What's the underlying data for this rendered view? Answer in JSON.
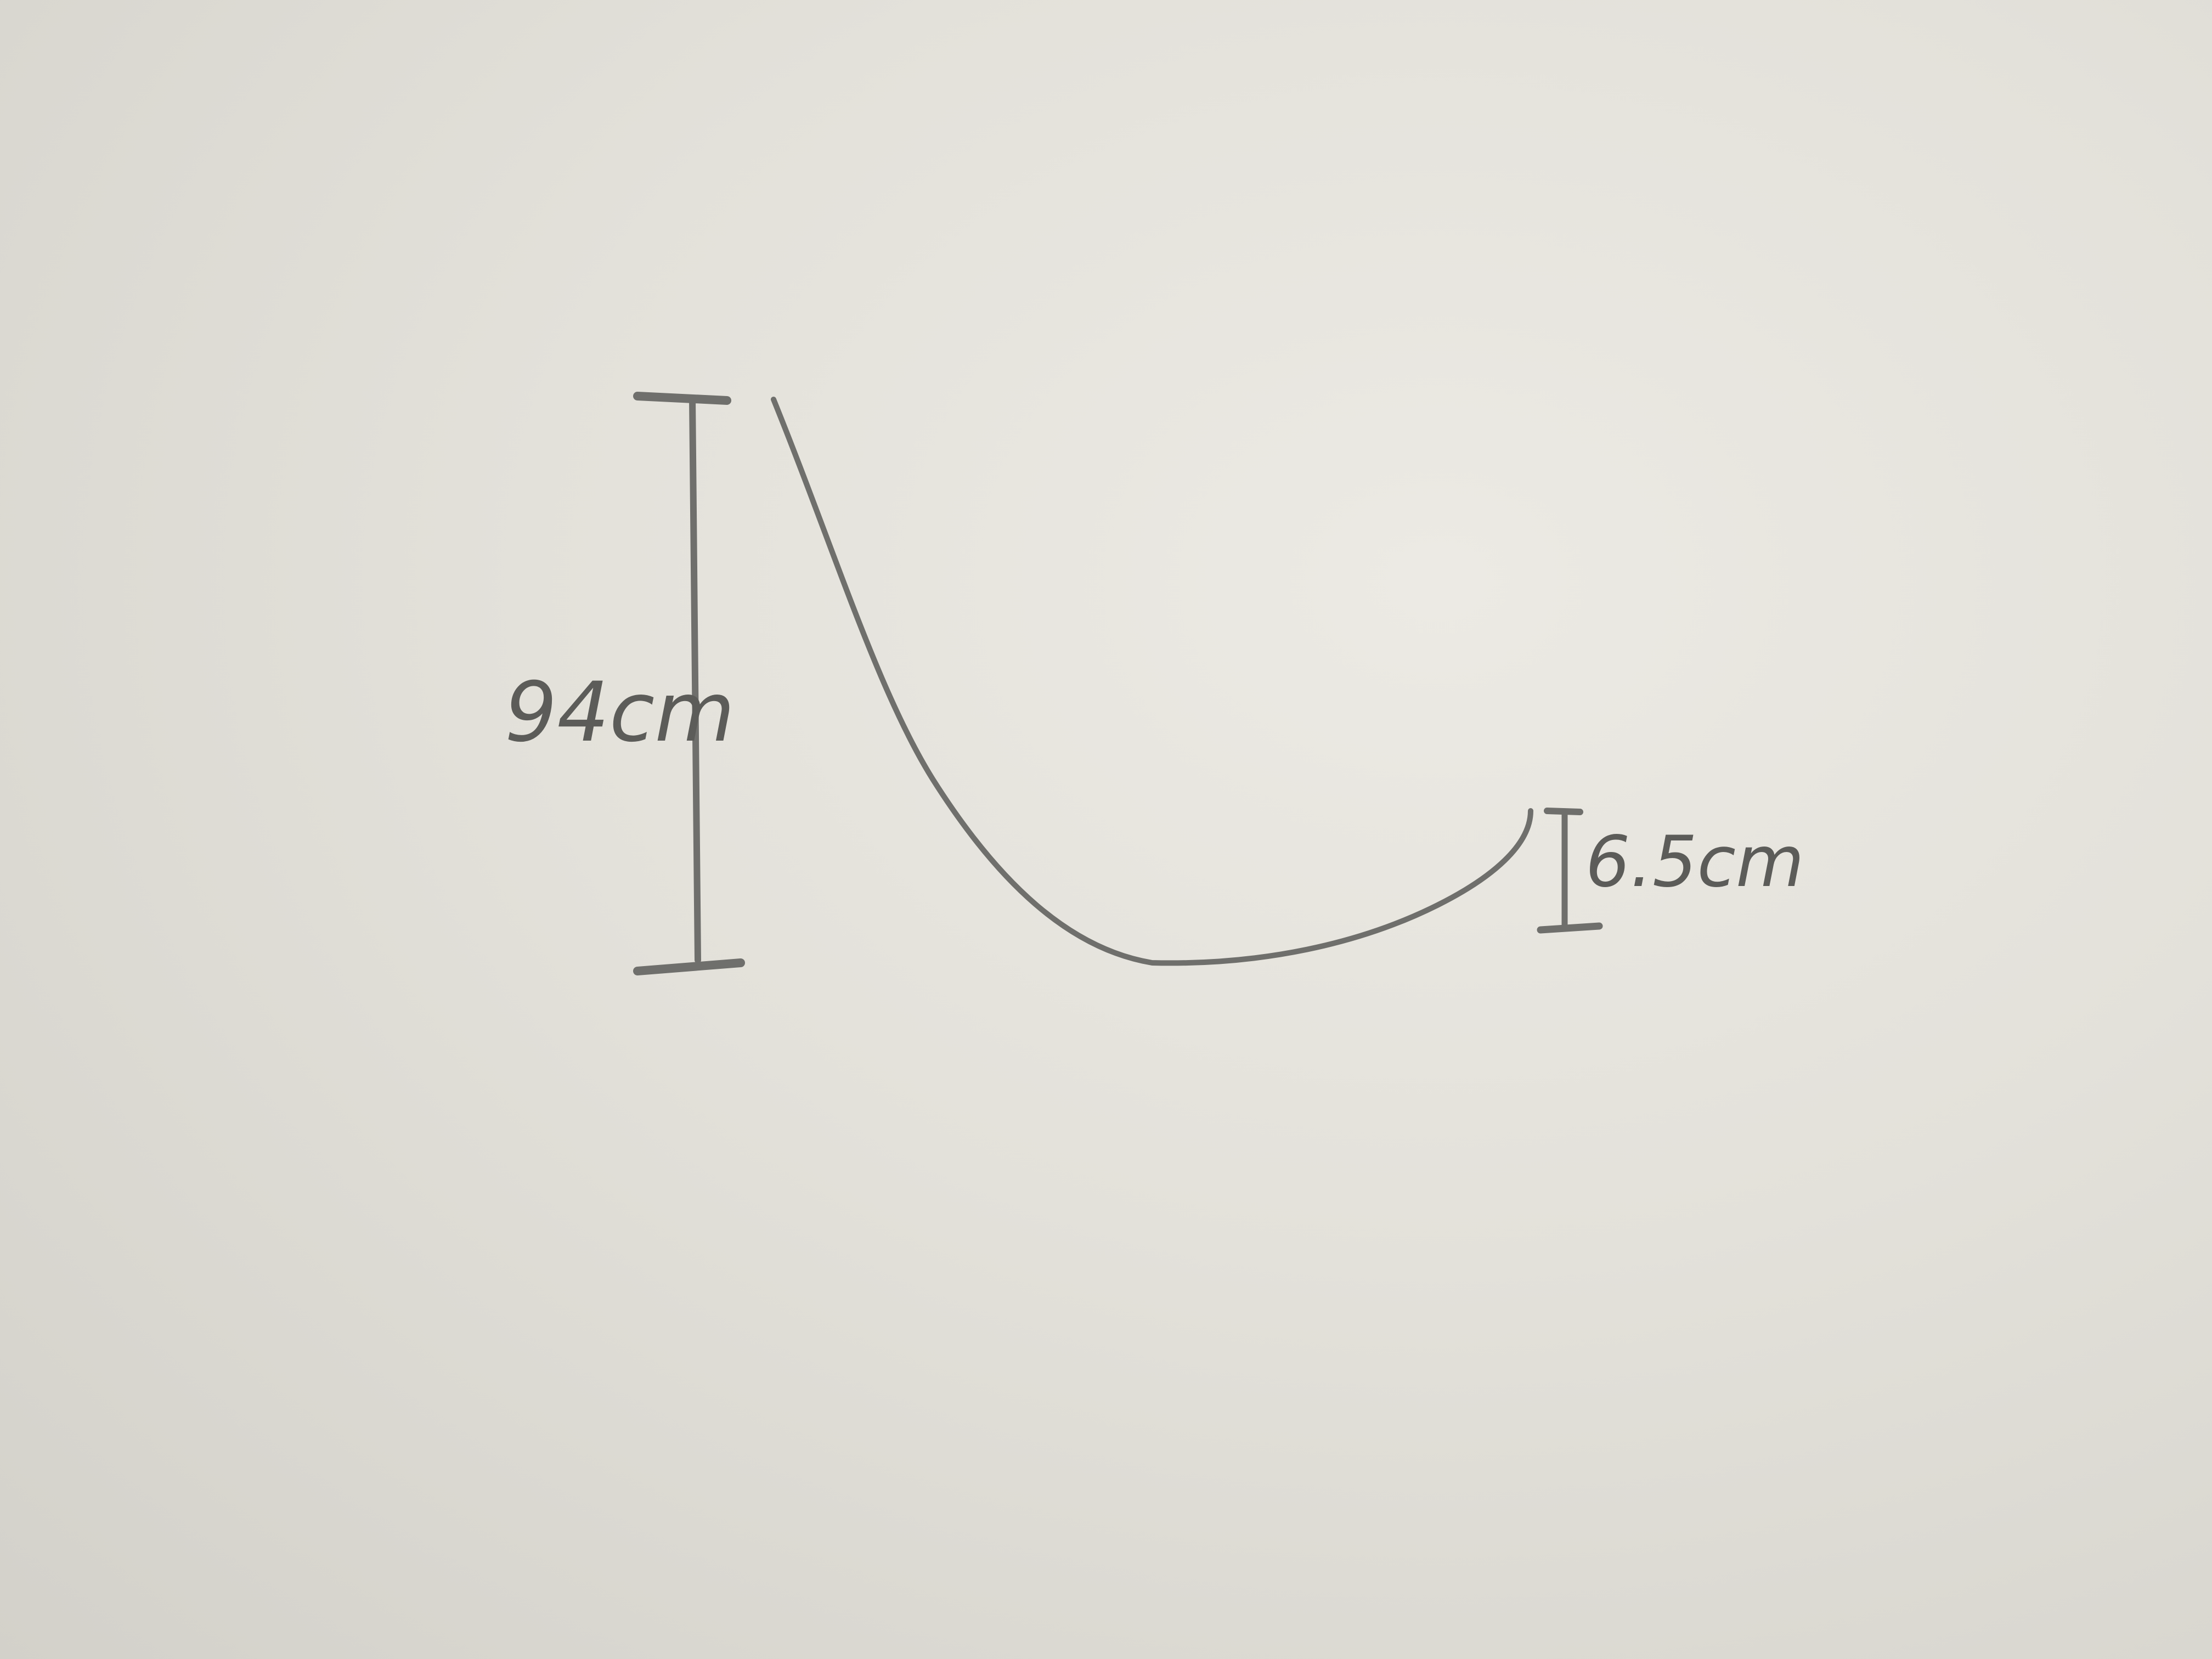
{
  "diagram": {
    "drop_height_label": "94cm",
    "end_height_label": "6.5cm"
  },
  "colors": {
    "paper": "#e8e6df",
    "pencil": "#6f6f6c"
  }
}
